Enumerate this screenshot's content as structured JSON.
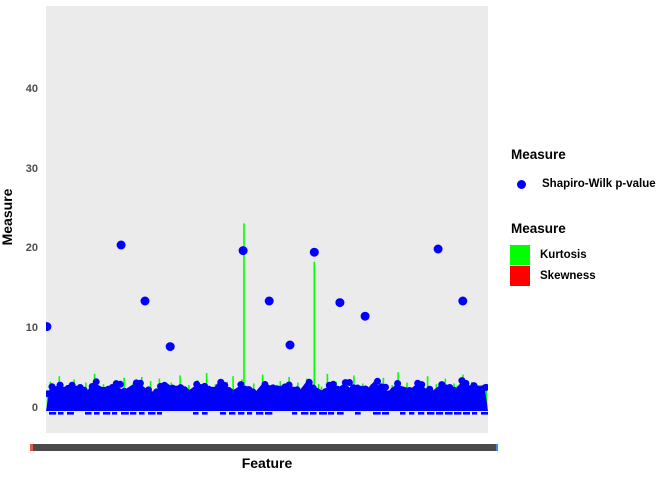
{
  "figure": {
    "background": "#FFFFFF",
    "panel_bg": "#EBEBEB"
  },
  "axes": {
    "y_title": "Measure",
    "x_title": "Feature",
    "y_ticks": [
      "0",
      "10",
      "20",
      "30",
      "40"
    ],
    "tick_color": "#4D4D4D",
    "x_band_color": "#4A4A4A",
    "x_band_left_accent": "#E2593C",
    "x_band_right_accent": "#4286E8",
    "x_band_note": "x tick labels overlap into a solid dark band"
  },
  "legends": [
    {
      "title": "Measure",
      "items": [
        {
          "label": "Shapiro-Wilk p-value",
          "key": "point",
          "color": "#0000FF"
        }
      ]
    },
    {
      "title": "Measure",
      "items": [
        {
          "label": "Kurtosis",
          "key": "fill",
          "color": "#00FF00"
        },
        {
          "label": "Skewness",
          "key": "fill",
          "color": "#FF0000"
        }
      ]
    }
  ],
  "chart_data": {
    "type": "mixed",
    "title": "",
    "xlabel": "Feature",
    "ylabel": "Measure",
    "y_ticks": [
      0,
      10,
      20,
      30,
      40
    ],
    "ylim": [
      -3,
      50.5
    ],
    "grid": false,
    "legend_position": "right",
    "series": [
      {
        "name": "Shapiro-Wilk p-value",
        "type": "scatter",
        "color": "#0000FF",
        "outliers": [
          {
            "x_frac": 0.002,
            "value": 10.3
          },
          {
            "x_frac": 0.17,
            "value": 20.5
          },
          {
            "x_frac": 0.224,
            "value": 13.5
          },
          {
            "x_frac": 0.281,
            "value": 7.8
          },
          {
            "x_frac": 0.446,
            "value": 19.8
          },
          {
            "x_frac": 0.505,
            "value": 13.5
          },
          {
            "x_frac": 0.552,
            "value": 8.0
          },
          {
            "x_frac": 0.607,
            "value": 19.6
          },
          {
            "x_frac": 0.665,
            "value": 13.3
          },
          {
            "x_frac": 0.722,
            "value": 11.6
          },
          {
            "x_frac": 0.887,
            "value": 20.0
          },
          {
            "x_frac": 0.943,
            "value": 13.5
          }
        ],
        "dense_band": {
          "value_min": -0.5,
          "value_max": 3.6,
          "top_profile": [
            2.6,
            2.9,
            2.4,
            3.1,
            2.7,
            2.2,
            3.3,
            2.8,
            2.5,
            3.0,
            2.3,
            2.9,
            3.4,
            2.6,
            2.1,
            2.8,
            3.2,
            2.5,
            2.9,
            2.4,
            3.1,
            2.7,
            2.3,
            3.5,
            2.8,
            2.4,
            3.0,
            2.6,
            2.2,
            3.3,
            2.9,
            2.5,
            3.1,
            2.7,
            2.4,
            3.6,
            2.8,
            2.3,
            3.0,
            2.6,
            3.2,
            2.5,
            2.9,
            2.4,
            3.4,
            2.7,
            2.2,
            3.1,
            2.8,
            2.5,
            3.3,
            2.6,
            2.3,
            3.0,
            2.8,
            2.4,
            3.5,
            2.9,
            2.6,
            3.1
          ]
        }
      },
      {
        "name": "Kurtosis",
        "type": "bar",
        "color": "#00FF00",
        "tall_spikes": [
          {
            "x_frac": 0.448,
            "value": 23.2
          },
          {
            "x_frac": 0.607,
            "value": 18.4
          }
        ],
        "spike_heights": [
          2.1,
          3.4,
          1.2,
          2.8,
          4.1,
          1.6,
          2.3,
          3.0,
          1.1,
          3.7,
          2.5,
          1.4,
          2.9,
          3.3,
          1.8,
          2.2,
          4.4,
          1.3,
          2.6,
          3.1,
          1.5,
          2.8,
          1.9,
          3.6,
          2.4,
          1.2,
          3.9,
          2.0,
          1.6,
          3.2,
          2.7,
          1.3,
          4.0,
          2.2,
          1.8,
          3.5,
          1.4,
          2.6,
          3.8,
          1.7,
          2.3,
          1.1,
          3.3,
          2.9,
          1.5,
          4.2,
          2.1,
          1.8,
          3.0,
          2.5,
          1.2,
          3.6,
          1.9,
          2.7,
          4.5,
          1.4,
          2.2,
          3.1,
          1.6,
          2.8,
          1.3,
          3.4,
          2.0,
          4.1,
          1.7,
          2.5,
          3.7,
          1.2,
          2.9,
          1.8,
          3.2,
          2.3,
          1.5,
          4.3,
          2.6,
          1.3,
          3.0,
          2.1,
          1.9,
          3.5,
          1.6,
          2.4,
          4.0,
          1.4,
          2.7,
          3.3,
          1.1,
          2.2,
          3.8,
          1.7,
          2.5,
          1.3,
          3.1,
          2.8,
          1.6,
          4.4,
          2.0,
          1.5,
          3.4,
          2.3,
          1.2,
          3.7,
          1.8,
          2.6,
          4.2,
          1.5,
          2.9,
          3.2,
          1.3,
          2.4,
          1.7,
          3.6,
          2.1,
          1.4,
          3.9,
          2.7,
          1.6,
          3.0,
          2.2,
          4.6,
          1.5,
          2.8,
          3.3,
          1.2,
          2.5,
          1.9,
          3.5,
          2.3,
          1.3,
          4.1,
          2.6,
          1.7,
          3.1,
          2.0,
          1.4,
          3.8,
          2.4,
          1.6,
          3.2,
          2.9,
          1.1,
          4.3,
          2.2,
          1.8,
          3.4,
          2.5,
          1.3,
          3.0,
          1.9,
          2.7
        ]
      },
      {
        "name": "Skewness",
        "type": "bar",
        "color": "#FF0000",
        "note": "values near zero, hidden behind overplotted points"
      }
    ]
  }
}
